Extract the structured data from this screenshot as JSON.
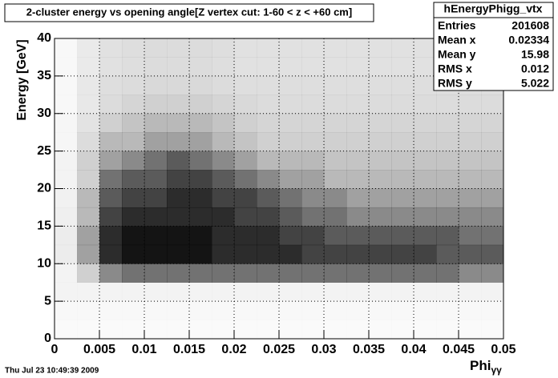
{
  "chart_data": {
    "type": "density",
    "title": "2-cluster energy vs opening angle[Z vertex cut: 1-60 < z < +60 cm]",
    "x_label": "Phi",
    "x_label_sub": "γγ",
    "y_label": "Energy [GeV]",
    "timestamp": "Thu Jul 23 10:49:39 2009",
    "xlim": [
      0,
      0.05
    ],
    "ylim": [
      0,
      40
    ],
    "xticks": [
      0,
      0.005,
      0.01,
      0.015,
      0.02,
      0.025,
      0.03,
      0.035,
      0.04,
      0.045,
      0.05
    ],
    "yticks": [
      0,
      5,
      10,
      15,
      20,
      25,
      30,
      35,
      40
    ],
    "grid": true,
    "color": "#000000",
    "xbins": [
      0,
      0.0025,
      0.005,
      0.0075,
      0.01,
      0.0125,
      0.015,
      0.0175,
      0.02,
      0.0225,
      0.025,
      0.0275,
      0.03,
      0.0325,
      0.035,
      0.0375,
      0.04,
      0.0425,
      0.045,
      0.0475,
      0.05
    ],
    "ybins": [
      0,
      2.5,
      5,
      7.5,
      10,
      12.5,
      15,
      17.5,
      20,
      22.5,
      25,
      27.5,
      30,
      32.5,
      35,
      37.5,
      40
    ],
    "density": [
      [
        0.2,
        0.2,
        0.2,
        0.2,
        0.2,
        0.2,
        0.2,
        0.2,
        0.2,
        0.2,
        0.2,
        0.2,
        0.2,
        0.2,
        0.2,
        0.2,
        0.2,
        0.2,
        0.2,
        0.2
      ],
      [
        0.3,
        0.3,
        0.3,
        0.3,
        0.3,
        0.3,
        0.3,
        0.3,
        0.3,
        0.3,
        0.3,
        0.3,
        0.3,
        0.3,
        0.3,
        0.3,
        0.3,
        0.3,
        0.3,
        0.3
      ],
      [
        0.5,
        0.5,
        0.5,
        0.5,
        0.5,
        0.5,
        0.5,
        0.5,
        0.5,
        0.5,
        0.5,
        0.5,
        0.5,
        0.5,
        0.5,
        0.5,
        0.5,
        0.5,
        0.5,
        0.5
      ],
      [
        0.5,
        2,
        5,
        6,
        6,
        6,
        6,
        6,
        6,
        6,
        6,
        6,
        6,
        6,
        6,
        6,
        6,
        6,
        5,
        5
      ],
      [
        0.8,
        4,
        9,
        10,
        10,
        10,
        10,
        9,
        9,
        9,
        9,
        8,
        8,
        8,
        8,
        8,
        8,
        7,
        7,
        7
      ],
      [
        0.8,
        4,
        9,
        10,
        10,
        10,
        10,
        9,
        9,
        9,
        8,
        8,
        7,
        7,
        7,
        7,
        7,
        7,
        6,
        6
      ],
      [
        0.7,
        3,
        8,
        9,
        9,
        9,
        9,
        9,
        8,
        8,
        7,
        6,
        6,
        5,
        5,
        5,
        5,
        5,
        5,
        5
      ],
      [
        0.6,
        3,
        7,
        8,
        8,
        9,
        9,
        8,
        8,
        7,
        6,
        5,
        5,
        4,
        4,
        4,
        4,
        4,
        4,
        4
      ],
      [
        0.5,
        2,
        6,
        7,
        7,
        8,
        8,
        7,
        6,
        5,
        4,
        4,
        3,
        3,
        3,
        3,
        3,
        3,
        3,
        3
      ],
      [
        0.5,
        2,
        4,
        5,
        6,
        7,
        6,
        5,
        4,
        3,
        3,
        3,
        2.5,
        2.5,
        2.5,
        2.5,
        2.5,
        2.5,
        2.5,
        2.5
      ],
      [
        0.4,
        1.5,
        3,
        3,
        4,
        4,
        4,
        3,
        2.5,
        2,
        2,
        2,
        2,
        2,
        2,
        2,
        2,
        2,
        2,
        2
      ],
      [
        0.4,
        1.2,
        2,
        2.5,
        3,
        3,
        3,
        2.5,
        2,
        1.8,
        1.8,
        1.8,
        1.8,
        1.8,
        1.8,
        1.8,
        1.8,
        1.8,
        1.8,
        1.8
      ],
      [
        0.3,
        1,
        1.5,
        1.8,
        2,
        2,
        2,
        1.8,
        1.6,
        1.5,
        1.5,
        1.5,
        1.5,
        1.5,
        1.5,
        1.5,
        1.5,
        1.5,
        1.5,
        1.5
      ],
      [
        0.3,
        1,
        1.4,
        1.5,
        1.6,
        1.6,
        1.6,
        1.5,
        1.4,
        1.4,
        1.4,
        1.4,
        1.4,
        1.4,
        1.4,
        1.4,
        1.4,
        1.4,
        1.4,
        1.4
      ],
      [
        0.3,
        0.9,
        1.3,
        1.4,
        1.5,
        1.5,
        1.5,
        1.4,
        1.3,
        1.3,
        1.3,
        1.3,
        1.3,
        1.3,
        1.3,
        1.3,
        1.3,
        1.3,
        1.3,
        1.3
      ],
      [
        0.3,
        0.9,
        1.3,
        1.4,
        1.5,
        1.5,
        1.5,
        1.4,
        1.3,
        1.3,
        1.3,
        1.3,
        1.3,
        1.3,
        1.3,
        1.3,
        1.3,
        1.3,
        1.3,
        1.3
      ]
    ],
    "stats": {
      "title": "hEnergyPhigg_vtx",
      "rows": [
        {
          "label": "Entries",
          "value": 201608
        },
        {
          "label": "Mean x",
          "value": 0.02334
        },
        {
          "label": "Mean y",
          "value": 15.98
        },
        {
          "label": "RMS x",
          "value": 0.012
        },
        {
          "label": "RMS y",
          "value": 5.022
        }
      ]
    }
  }
}
